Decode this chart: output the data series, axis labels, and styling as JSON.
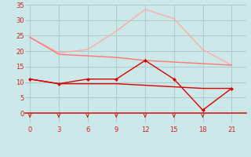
{
  "x": [
    0,
    3,
    6,
    9,
    12,
    15,
    18,
    21
  ],
  "line1": [
    24.5,
    19.5,
    20.5,
    26.5,
    33.5,
    30.5,
    20.5,
    15.5
  ],
  "line2": [
    24.5,
    19.0,
    18.5,
    18.0,
    17.0,
    16.5,
    16.0,
    15.5
  ],
  "line3": [
    11.0,
    9.5,
    11.0,
    11.0,
    17.0,
    11.0,
    1.0,
    8.0
  ],
  "line4": [
    11.0,
    9.5,
    9.5,
    9.5,
    9.0,
    8.5,
    8.0,
    8.0
  ],
  "color1": "#ffaaaa",
  "color2": "#ff7777",
  "color3": "#dd0000",
  "color4": "#dd0000",
  "bg_color": "#cce8e8",
  "grid_color": "#aacccc",
  "axis_color": "#cc2222",
  "text_color": "#cc2222",
  "ylim": [
    -3,
    35
  ],
  "yticks": [
    0,
    5,
    10,
    15,
    20,
    25,
    30,
    35
  ],
  "xticks": [
    0,
    3,
    6,
    9,
    12,
    15,
    18,
    21
  ],
  "arrow_xticks": [
    0,
    3,
    6,
    9,
    12,
    15,
    18
  ]
}
